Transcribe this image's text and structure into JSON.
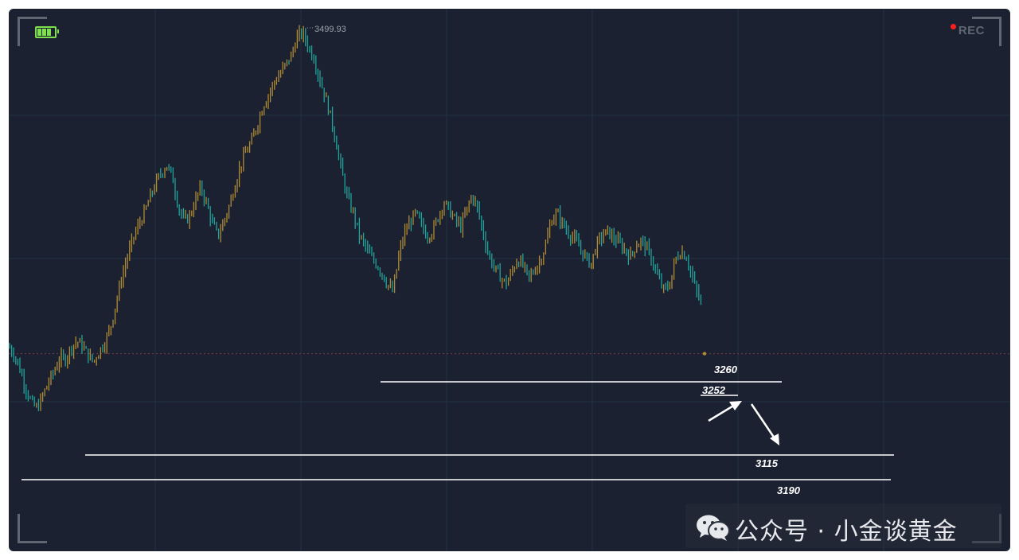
{
  "watermark": {
    "text": "公众号 · 小金谈黄金",
    "icon": "wechat-icon"
  },
  "status": {
    "rec_label": "REC",
    "battery_icon": "battery-icon",
    "rec_color": "#ff1e1e"
  },
  "colors": {
    "background": "#1b2130",
    "up": "#b08a34",
    "down": "#1fa39a",
    "level_line": "#ffffff",
    "grid": "#223443"
  },
  "chart_data": {
    "type": "candlestick",
    "instrument": "",
    "title": "",
    "xlabel": "",
    "ylabel": "",
    "ylim": [
      3042,
      3517
    ],
    "grid": true,
    "peak_label": "3499.93",
    "current_price": 3215,
    "path": [
      3221,
      3214,
      3201,
      3185,
      3172,
      3167,
      3178,
      3190,
      3199,
      3211,
      3210,
      3220,
      3226,
      3222,
      3214,
      3208,
      3217,
      3225,
      3238,
      3260,
      3282,
      3300,
      3316,
      3328,
      3338,
      3352,
      3364,
      3374,
      3380,
      3369,
      3344,
      3331,
      3335,
      3349,
      3361,
      3346,
      3330,
      3318,
      3330,
      3344,
      3362,
      3380,
      3392,
      3401,
      3416,
      3432,
      3442,
      3453,
      3460,
      3468,
      3476,
      3492,
      3496,
      3484,
      3474,
      3456,
      3440,
      3422,
      3398,
      3372,
      3350,
      3338,
      3319,
      3310,
      3300,
      3294,
      3286,
      3276,
      3269,
      3300,
      3320,
      3330,
      3338,
      3328,
      3318,
      3322,
      3335,
      3348,
      3340,
      3332,
      3326,
      3340,
      3354,
      3341,
      3320,
      3300,
      3290,
      3282,
      3276,
      3286,
      3298,
      3292,
      3281,
      3288,
      3296,
      3310,
      3332,
      3338,
      3329,
      3321,
      3316,
      3308,
      3300,
      3293,
      3310,
      3318,
      3322,
      3316,
      3312,
      3306,
      3300,
      3310,
      3314,
      3306,
      3295,
      3280,
      3270,
      3276,
      3298,
      3305,
      3299,
      3281,
      3265,
      3255
    ],
    "levels": [
      {
        "value": 3260,
        "label": "3260"
      },
      {
        "value": 3252,
        "label": "3252"
      },
      {
        "value": 3115,
        "label": "3115"
      },
      {
        "value": 3190,
        "label": "3190"
      }
    ],
    "annotations": [
      {
        "type": "arrow",
        "direction": "up",
        "from_price": 3220,
        "to_price": 3240
      },
      {
        "type": "arrow",
        "direction": "down",
        "from_price": 3240,
        "to_price": 3195
      }
    ]
  }
}
